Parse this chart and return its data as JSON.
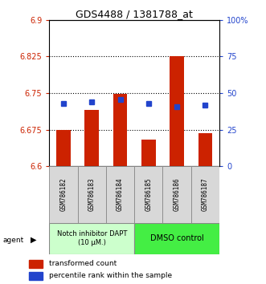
{
  "title": "GDS4488 / 1381788_at",
  "categories": [
    "GSM786182",
    "GSM786183",
    "GSM786184",
    "GSM786185",
    "GSM786186",
    "GSM786187"
  ],
  "bar_bottoms": [
    6.6,
    6.6,
    6.6,
    6.6,
    6.6,
    6.6
  ],
  "bar_tops": [
    6.675,
    6.715,
    6.748,
    6.655,
    6.825,
    6.668
  ],
  "blue_values": [
    6.728,
    6.732,
    6.736,
    6.728,
    6.722,
    6.726
  ],
  "ylim_left": [
    6.6,
    6.9
  ],
  "ylim_right": [
    0,
    100
  ],
  "yticks_left": [
    6.6,
    6.675,
    6.75,
    6.825,
    6.9
  ],
  "ytick_labels_left": [
    "6.6",
    "6.675",
    "6.75",
    "6.825",
    "6.9"
  ],
  "yticks_right": [
    0,
    25,
    50,
    75,
    100
  ],
  "ytick_labels_right": [
    "0",
    "25",
    "50",
    "75",
    "100%"
  ],
  "hlines": [
    6.675,
    6.75,
    6.825
  ],
  "bar_color": "#cc2200",
  "blue_color": "#2244cc",
  "group1_label": "Notch inhibitor DAPT\n(10 μM.)",
  "group2_label": "DMSO control",
  "group1_indices": [
    0,
    1,
    2
  ],
  "group2_indices": [
    3,
    4,
    5
  ],
  "group1_bg": "#ccffcc",
  "group2_bg": "#44ee44",
  "agent_label": "agent",
  "legend1": "transformed count",
  "legend2": "percentile rank within the sample",
  "left_axis_color": "#cc2200",
  "right_axis_color": "#2244cc"
}
